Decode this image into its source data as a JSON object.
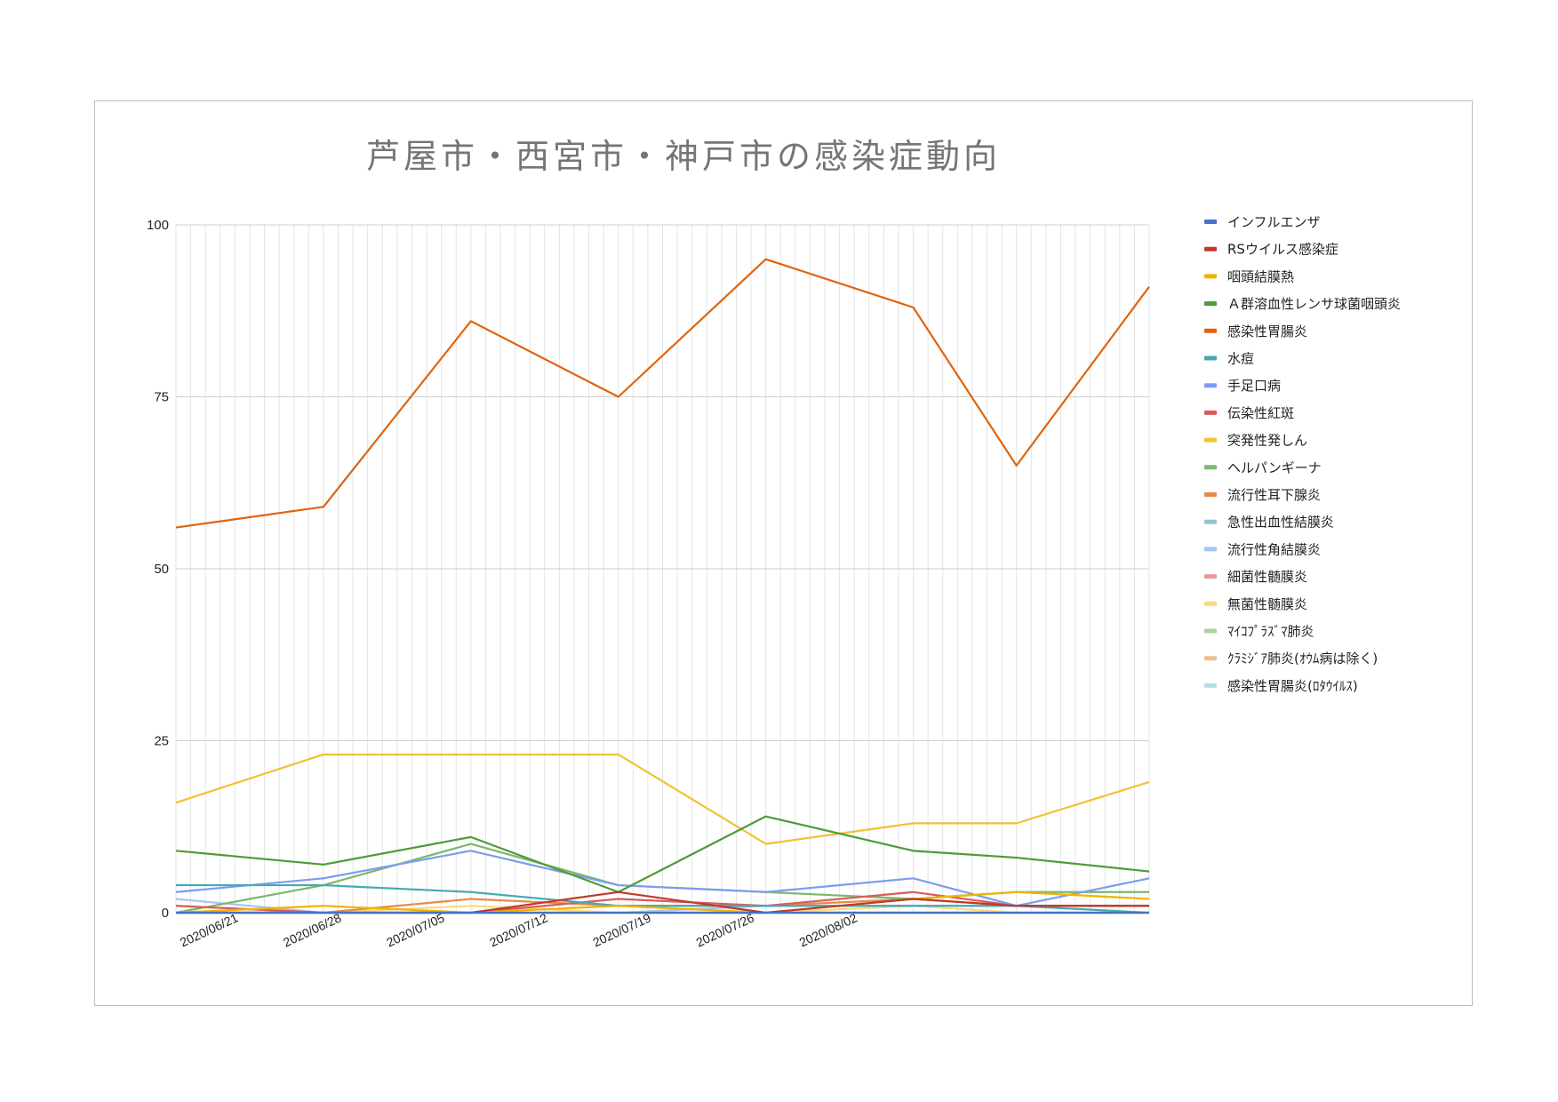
{
  "chart_data": {
    "type": "line",
    "title": "芦屋市・西宮市・神戸市の感染症動向",
    "xlabel": "",
    "ylabel": "",
    "ylim": [
      0,
      100
    ],
    "y_ticks": [
      0,
      25,
      50,
      75,
      100
    ],
    "x_tick_labels": [
      "2020/06/21",
      "2020/06/28",
      "2020/07/05",
      "2020/07/12",
      "2020/07/19",
      "2020/07/26",
      "2020/08/02"
    ],
    "x": [
      "2020/06/19",
      "2020/06/29",
      "2020/07/09",
      "2020/07/19",
      "2020/07/29",
      "2020/08/08",
      "2020/08/15",
      "2020/08/24"
    ],
    "grid": true,
    "legend_position": "right",
    "series": [
      {
        "name": "インフルエンザ",
        "color": "#4472c4",
        "values": [
          0,
          0,
          0,
          0,
          0,
          0,
          0,
          0
        ]
      },
      {
        "name": "RSウイルス感染症",
        "color": "#c0392b",
        "values": [
          0,
          0,
          0,
          3,
          0,
          2,
          1,
          1
        ]
      },
      {
        "name": "咽頭結膜熱",
        "color": "#f1b300",
        "values": [
          0,
          1,
          0,
          1,
          0,
          2,
          3,
          2
        ]
      },
      {
        "name": "Ａ群溶血性レンサ球菌咽頭炎",
        "color": "#4e9a3a",
        "values": [
          9,
          7,
          11,
          3,
          14,
          9,
          8,
          6
        ]
      },
      {
        "name": "感染性胃腸炎",
        "color": "#e0640f",
        "values": [
          56,
          59,
          86,
          75,
          95,
          88,
          65,
          91
        ]
      },
      {
        "name": "水痘",
        "color": "#46a9b4",
        "values": [
          4,
          4,
          3,
          1,
          1,
          1,
          1,
          0
        ]
      },
      {
        "name": "手足口病",
        "color": "#7b9df0",
        "values": [
          3,
          5,
          9,
          4,
          3,
          5,
          1,
          5
        ]
      },
      {
        "name": "伝染性紅斑",
        "color": "#d95c5c",
        "values": [
          1,
          0,
          0,
          2,
          1,
          3,
          1,
          1
        ]
      },
      {
        "name": "突発性発しん",
        "color": "#f1c232",
        "values": [
          16,
          23,
          23,
          23,
          10,
          13,
          13,
          19
        ]
      },
      {
        "name": "ヘルパンギーナ",
        "color": "#7cb86b",
        "values": [
          0,
          4,
          10,
          4,
          3,
          2,
          3,
          3
        ]
      },
      {
        "name": "流行性耳下腺炎",
        "color": "#e8894a",
        "values": [
          1,
          0,
          2,
          1,
          1,
          2,
          1,
          1
        ]
      },
      {
        "name": "急性出血性結膜炎",
        "color": "#8dc6cf",
        "values": [
          0,
          0,
          0,
          0,
          0,
          0,
          0,
          0
        ]
      },
      {
        "name": "流行性角結膜炎",
        "color": "#a9c4f5",
        "values": [
          2,
          0,
          0,
          0,
          1,
          1,
          1,
          1
        ]
      },
      {
        "name": "細菌性髄膜炎",
        "color": "#e79a9a",
        "values": [
          0,
          0,
          0,
          0,
          0,
          0,
          0,
          0
        ]
      },
      {
        "name": "無菌性髄膜炎",
        "color": "#f7dc85",
        "values": [
          0,
          0,
          1,
          0,
          0,
          1,
          0,
          0
        ]
      },
      {
        "name": "ﾏｲｺﾌﾟﾗｽﾞﾏ肺炎",
        "color": "#a9d49d",
        "values": [
          0,
          0,
          0,
          0,
          0,
          0,
          0,
          0
        ]
      },
      {
        "name": "ｸﾗﾐｼﾞｱ肺炎(ｵｳﾑ病は除く)",
        "color": "#f0c08a",
        "values": [
          0,
          0,
          0,
          0,
          0,
          0,
          0,
          0
        ]
      },
      {
        "name": "感染性胃腸炎(ﾛﾀｳｲﾙｽ)",
        "color": "#b3dfe6",
        "values": [
          0,
          0,
          0,
          0,
          0,
          0,
          0,
          0
        ]
      }
    ]
  }
}
